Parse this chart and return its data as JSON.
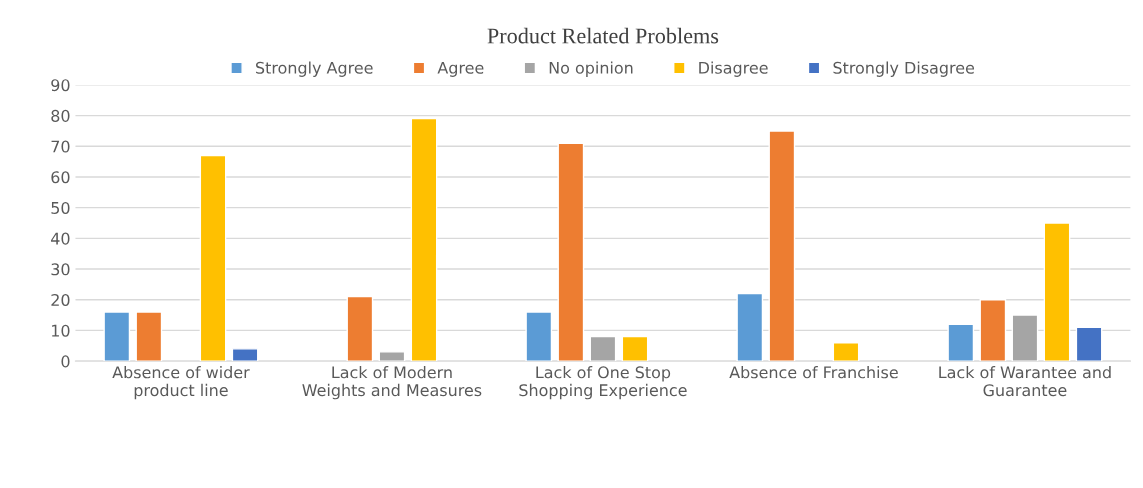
{
  "chart_data": {
    "type": "bar",
    "title": "Product Related Problems",
    "categories": [
      "Absence of wider\nproduct line",
      "Lack of Modern\nWeights and Measures",
      "Lack of One Stop\nShopping Experience",
      "Absence of Franchise",
      "Lack of Warantee and\nGuarantee"
    ],
    "series": [
      {
        "name": "Strongly Agree",
        "color": "#5b9bd5",
        "values": [
          16,
          null,
          16,
          22,
          12
        ]
      },
      {
        "name": "Agree",
        "color": "#ed7d31",
        "values": [
          16,
          21,
          71,
          75,
          20
        ]
      },
      {
        "name": "No opinion",
        "color": "#a5a5a5",
        "values": [
          null,
          3,
          8,
          null,
          15
        ]
      },
      {
        "name": "Disagree",
        "color": "#ffc000",
        "values": [
          67,
          79,
          8,
          6,
          45
        ]
      },
      {
        "name": "Strongly Disagree",
        "color": "#4472c4",
        "values": [
          4,
          null,
          null,
          null,
          11
        ]
      }
    ],
    "ylim": [
      0,
      90
    ],
    "yticks": [
      0,
      10,
      20,
      30,
      40,
      50,
      60,
      70,
      80,
      90
    ],
    "grid": "y",
    "legend": "top"
  }
}
